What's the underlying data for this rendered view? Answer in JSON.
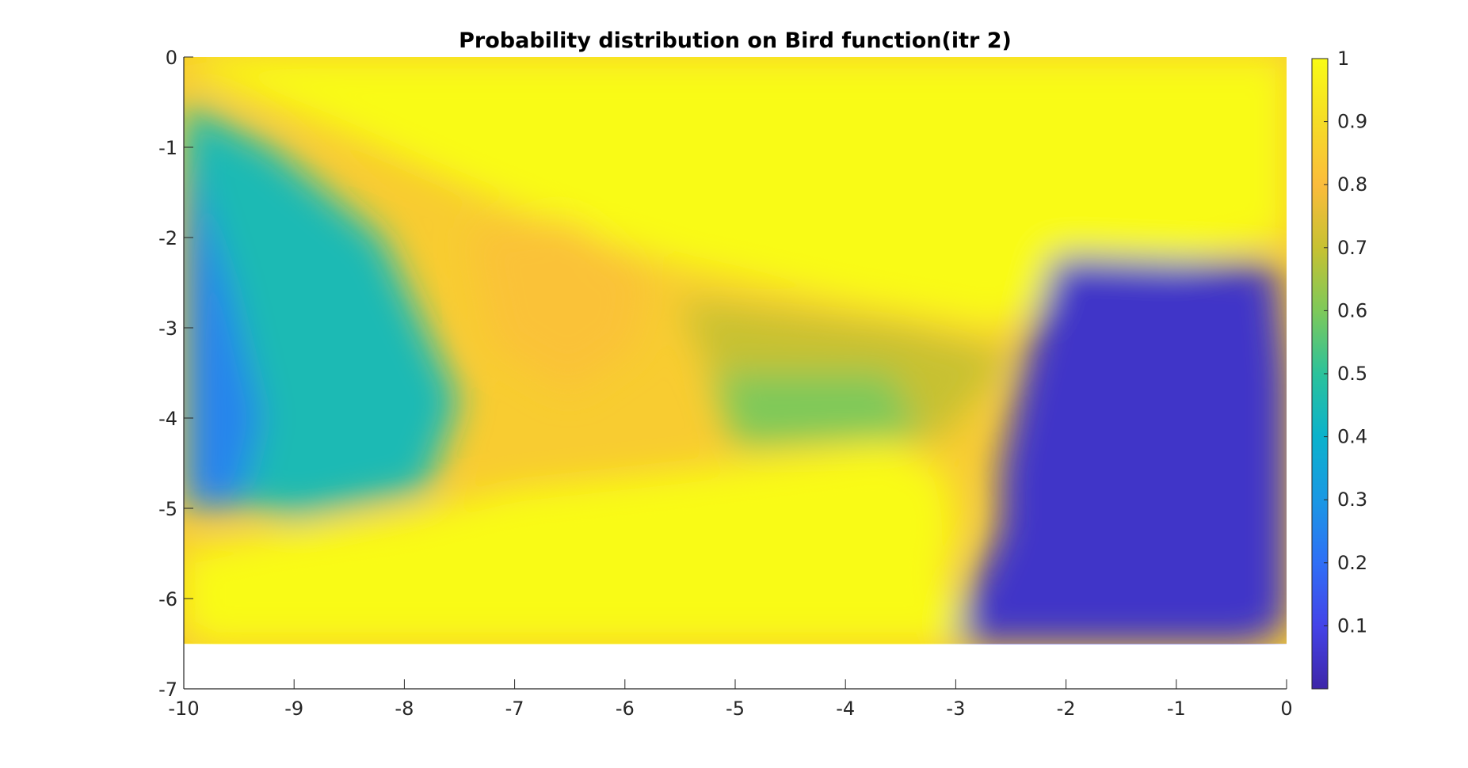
{
  "chart_data": {
    "type": "heatmap",
    "title": "Probability distribution on Bird function(itr 2)",
    "xlabel": "",
    "ylabel": "",
    "xlim": [
      -10,
      0
    ],
    "ylim": [
      -7,
      0
    ],
    "y_direction": "reversed",
    "grid": false,
    "x_ticks": [
      "-10",
      "-9",
      "-8",
      "-7",
      "-6",
      "-5",
      "-4",
      "-3",
      "-2",
      "-1",
      "0"
    ],
    "y_ticks": [
      "0",
      "-1",
      "-2",
      "-3",
      "-4",
      "-5",
      "-6",
      "-7"
    ],
    "data_region": {
      "x": [
        -10,
        0
      ],
      "y": [
        -6.5,
        0
      ]
    },
    "colorbar": {
      "location": "right",
      "range": [
        0,
        1
      ],
      "ticks": [
        "1",
        "0.9",
        "0.8",
        "0.7",
        "0.6",
        "0.5",
        "0.4",
        "0.3",
        "0.2",
        "0.1"
      ],
      "colormap": "parula"
    },
    "regions": [
      {
        "label": "high",
        "value": 1.0,
        "points": [
          [
            -9.9,
            0
          ],
          [
            0,
            0
          ],
          [
            0,
            -2.0
          ],
          [
            -1.8,
            -2.5
          ],
          [
            -2.6,
            -3.0
          ],
          [
            -4.0,
            -2.7
          ],
          [
            -5.5,
            -2.3
          ],
          [
            -6.5,
            -1.9
          ],
          [
            -7.5,
            -1.4
          ],
          [
            -8.6,
            -0.8
          ],
          [
            -9.9,
            -0.15
          ]
        ]
      },
      {
        "label": "high",
        "value": 1.0,
        "points": [
          [
            -10,
            -5.5
          ],
          [
            -9.2,
            -5.3
          ],
          [
            -8.0,
            -5.1
          ],
          [
            -7.0,
            -4.8
          ],
          [
            -5.5,
            -4.6
          ],
          [
            -4.5,
            -4.45
          ],
          [
            -3.6,
            -4.3
          ],
          [
            -3.1,
            -4.6
          ],
          [
            -3.0,
            -5.2
          ],
          [
            -3.1,
            -5.8
          ],
          [
            -2.9,
            -6.3
          ],
          [
            -3.0,
            -6.5
          ],
          [
            -9.8,
            -6.5
          ],
          [
            -10,
            -6.3
          ]
        ]
      },
      {
        "label": "mid",
        "value": 0.82,
        "points": [
          [
            -7.4,
            -1.9
          ],
          [
            -6.5,
            -1.8
          ],
          [
            -5.8,
            -2.4
          ],
          [
            -5.9,
            -3.2
          ],
          [
            -6.5,
            -3.7
          ],
          [
            -7.2,
            -3.2
          ]
        ]
      },
      {
        "label": "mid",
        "value": 0.7,
        "points": [
          [
            -5.5,
            -2.7
          ],
          [
            -3.5,
            -3.0
          ],
          [
            -2.5,
            -3.3
          ],
          [
            -3.1,
            -4.2
          ],
          [
            -5.0,
            -4.1
          ]
        ]
      },
      {
        "label": "mid",
        "value": 0.6,
        "points": [
          [
            -5.2,
            -3.5
          ],
          [
            -3.6,
            -3.5
          ],
          [
            -3.3,
            -4.2
          ],
          [
            -5.0,
            -4.3
          ]
        ]
      },
      {
        "label": "low",
        "value": 0.45,
        "points": [
          [
            -10,
            -0.5
          ],
          [
            -9.2,
            -1.0
          ],
          [
            -8.2,
            -2.0
          ],
          [
            -7.5,
            -3.8
          ],
          [
            -7.8,
            -4.8
          ],
          [
            -9.0,
            -5.1
          ],
          [
            -10,
            -4.8
          ]
        ]
      },
      {
        "label": "low",
        "value": 0.25,
        "points": [
          [
            -10,
            -1.0
          ],
          [
            -9.6,
            -2.5
          ],
          [
            -9.3,
            -4.0
          ],
          [
            -9.5,
            -5.0
          ],
          [
            -10,
            -5.0
          ]
        ]
      },
      {
        "label": "low",
        "value": 0.05,
        "points": [
          [
            -2.1,
            -2.2
          ],
          [
            -0.1,
            -2.3
          ],
          [
            0,
            -3.5
          ],
          [
            0,
            -6.3
          ],
          [
            -0.3,
            -6.5
          ],
          [
            -3.0,
            -6.5
          ],
          [
            -2.9,
            -6.0
          ],
          [
            -2.6,
            -5.2
          ],
          [
            -2.6,
            -4.6
          ],
          [
            -2.4,
            -3.5
          ]
        ]
      }
    ]
  }
}
